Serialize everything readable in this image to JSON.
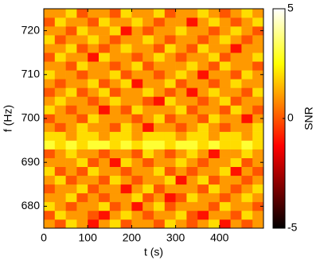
{
  "chart_data": {
    "type": "heatmap",
    "xlabel": "t (s)",
    "ylabel": "f (Hz)",
    "colorbar_label": "SNR",
    "colormap": "hot",
    "xlim": [
      0,
      500
    ],
    "ylim": [
      675,
      725
    ],
    "clim": [
      -5,
      5
    ],
    "xticks": [
      0,
      100,
      200,
      300,
      400
    ],
    "yticks": [
      680,
      690,
      700,
      710,
      720
    ],
    "cticks": [
      -5,
      0,
      5
    ],
    "x": [
      12.5,
      37.5,
      62.5,
      87.5,
      112.5,
      137.5,
      162.5,
      187.5,
      212.5,
      237.5,
      262.5,
      287.5,
      312.5,
      337.5,
      362.5,
      387.5,
      412.5,
      437.5,
      462.5,
      487.5
    ],
    "y": [
      676,
      678,
      680,
      682,
      684,
      686,
      688,
      690,
      692,
      694,
      696,
      698,
      700,
      702,
      704,
      706,
      708,
      710,
      712,
      714,
      716,
      718,
      720,
      722,
      724
    ],
    "z": [
      [
        1,
        0,
        2,
        1,
        -1,
        1,
        2,
        0,
        1,
        1,
        0,
        2,
        1,
        0,
        1,
        2,
        -1,
        1,
        0,
        1
      ],
      [
        0,
        2,
        1,
        1,
        0,
        -1,
        1,
        2,
        1,
        0,
        1,
        1,
        2,
        0,
        -1,
        1,
        1,
        0,
        2,
        1
      ],
      [
        2,
        1,
        0,
        1,
        1,
        2,
        0,
        1,
        -1,
        1,
        2,
        0,
        1,
        1,
        1,
        0,
        2,
        1,
        1,
        0
      ],
      [
        1,
        1,
        2,
        0,
        1,
        0,
        1,
        1,
        2,
        0,
        1,
        -1,
        0,
        2,
        1,
        1,
        0,
        1,
        2,
        1
      ],
      [
        0,
        1,
        1,
        2,
        0,
        1,
        1,
        -1,
        1,
        2,
        0,
        1,
        1,
        1,
        0,
        2,
        1,
        0,
        1,
        2
      ],
      [
        1,
        2,
        0,
        1,
        1,
        0,
        2,
        1,
        0,
        1,
        1,
        2,
        -1,
        1,
        2,
        0,
        1,
        1,
        0,
        1
      ],
      [
        2,
        0,
        1,
        0,
        2,
        1,
        1,
        0,
        1,
        1,
        2,
        0,
        1,
        0,
        1,
        1,
        2,
        -1,
        1,
        0
      ],
      [
        1,
        1,
        1,
        2,
        0,
        1,
        -1,
        2,
        1,
        0,
        1,
        1,
        2,
        1,
        0,
        1,
        1,
        2,
        0,
        1
      ],
      [
        0,
        1,
        2,
        1,
        1,
        0,
        1,
        1,
        0,
        2,
        1,
        0,
        1,
        2,
        1,
        -1,
        1,
        1,
        2,
        1
      ],
      [
        3,
        2,
        3,
        2,
        3,
        3,
        2,
        3,
        2,
        3,
        3,
        2,
        3,
        3,
        2,
        3,
        2,
        2,
        3,
        2
      ],
      [
        2,
        2,
        1,
        2,
        2,
        1,
        2,
        2,
        1,
        2,
        2,
        2,
        1,
        2,
        2,
        1,
        2,
        2,
        1,
        2
      ],
      [
        1,
        0,
        1,
        2,
        1,
        1,
        0,
        2,
        1,
        -1,
        1,
        1,
        0,
        1,
        2,
        1,
        0,
        1,
        1,
        2
      ],
      [
        0,
        1,
        1,
        0,
        2,
        1,
        1,
        1,
        0,
        1,
        2,
        0,
        1,
        1,
        0,
        2,
        1,
        1,
        -1,
        1
      ],
      [
        2,
        1,
        0,
        1,
        1,
        -1,
        1,
        0,
        2,
        1,
        1,
        1,
        2,
        0,
        1,
        1,
        0,
        2,
        1,
        0
      ],
      [
        1,
        2,
        1,
        1,
        0,
        1,
        2,
        1,
        1,
        0,
        -1,
        2,
        1,
        1,
        0,
        1,
        2,
        0,
        1,
        1
      ],
      [
        0,
        1,
        2,
        0,
        1,
        2,
        0,
        1,
        1,
        2,
        1,
        0,
        1,
        -1,
        1,
        2,
        1,
        1,
        0,
        2
      ],
      [
        1,
        0,
        1,
        1,
        2,
        0,
        1,
        2,
        -1,
        1,
        1,
        2,
        0,
        1,
        1,
        0,
        1,
        2,
        1,
        1
      ],
      [
        2,
        1,
        1,
        0,
        1,
        1,
        2,
        0,
        1,
        1,
        0,
        1,
        2,
        1,
        -1,
        1,
        1,
        0,
        2,
        1
      ],
      [
        1,
        1,
        0,
        2,
        1,
        1,
        0,
        1,
        2,
        0,
        1,
        1,
        1,
        2,
        1,
        0,
        2,
        1,
        1,
        0
      ],
      [
        0,
        2,
        1,
        1,
        -1,
        2,
        1,
        1,
        0,
        1,
        2,
        1,
        0,
        1,
        1,
        2,
        0,
        1,
        1,
        2
      ],
      [
        1,
        1,
        2,
        0,
        1,
        0,
        1,
        2,
        1,
        1,
        0,
        2,
        1,
        0,
        2,
        1,
        1,
        -1,
        1,
        1
      ],
      [
        2,
        0,
        1,
        1,
        2,
        1,
        0,
        1,
        1,
        2,
        1,
        0,
        1,
        1,
        0,
        1,
        2,
        1,
        0,
        1
      ],
      [
        1,
        1,
        0,
        2,
        1,
        1,
        2,
        -1,
        1,
        0,
        1,
        1,
        2,
        1,
        1,
        0,
        1,
        2,
        1,
        0
      ],
      [
        0,
        2,
        1,
        1,
        0,
        2,
        1,
        1,
        2,
        1,
        0,
        1,
        1,
        -1,
        1,
        2,
        1,
        0,
        1,
        2
      ],
      [
        1,
        1,
        2,
        0,
        1,
        1,
        0,
        2,
        1,
        1,
        2,
        0,
        1,
        1,
        2,
        1,
        0,
        1,
        2,
        1
      ]
    ]
  }
}
